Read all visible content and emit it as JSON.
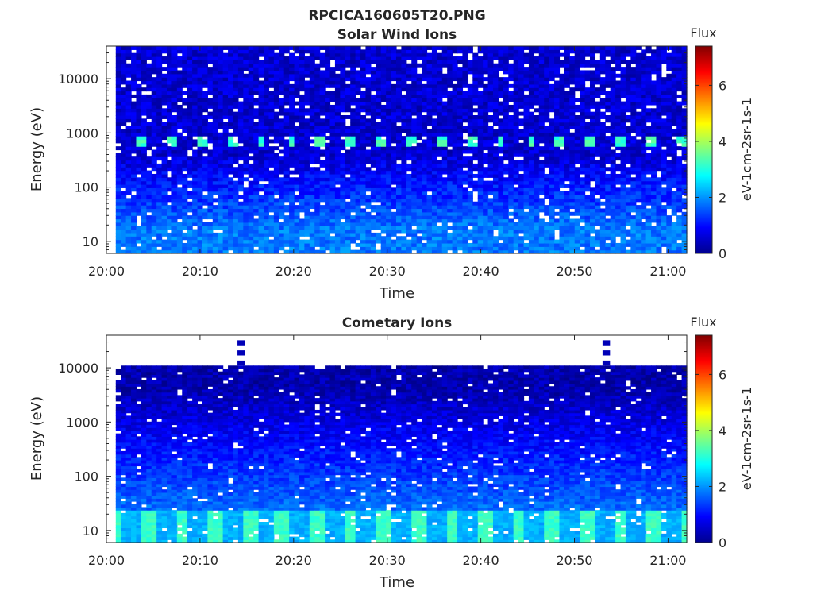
{
  "figure_title": "RPCICA160605T20.PNG",
  "chart_data": [
    {
      "type": "heatmap",
      "title": "Solar Wind Ions",
      "xlabel": "Time",
      "ylabel": "Energy (eV)",
      "x_ticks": [
        "20:00",
        "20:10",
        "20:20",
        "20:30",
        "20:40",
        "20:50",
        "21:00"
      ],
      "xlim": [
        "20:00",
        "21:02"
      ],
      "data_start": "20:01",
      "data_end": "21:02",
      "y_scale": "log",
      "y_ticks": [
        10,
        100,
        1000,
        10000
      ],
      "ylim": [
        6,
        40000
      ],
      "colorbar": {
        "title": "Flux",
        "label": "eV-1cm-2sr-1s-1",
        "ticks": [
          0,
          2,
          4,
          6
        ],
        "range": [
          0,
          7.4
        ]
      },
      "features": [
        {
          "description": "Solar wind proton beam",
          "energy_eV": 700,
          "peak_flux": 3.5,
          "pulse_period_min": 3.2,
          "num_pulses": 18
        }
      ],
      "background": {
        "high_energy_flux": 0.6,
        "low_energy_flux": 1.8,
        "transition_eV": 100
      }
    },
    {
      "type": "heatmap",
      "title": "Cometary Ions",
      "xlabel": "Time",
      "ylabel": "Energy (eV)",
      "x_ticks": [
        "20:00",
        "20:10",
        "20:20",
        "20:30",
        "20:40",
        "20:50",
        "21:00"
      ],
      "xlim": [
        "20:00",
        "21:02"
      ],
      "data_start": "20:01",
      "data_end": "21:02",
      "y_scale": "log",
      "y_ticks": [
        10,
        100,
        1000,
        10000
      ],
      "ylim": [
        6,
        40000
      ],
      "upper_energy_cutoff": 11000,
      "colorbar": {
        "title": "Flux",
        "label": "eV-1cm-2sr-1s-1",
        "ticks": [
          0,
          2,
          4,
          6
        ],
        "range": [
          0,
          7.4
        ]
      },
      "features": [
        {
          "description": "Low energy cometary ions",
          "energy_range_eV": [
            6,
            25
          ],
          "peak_flux": 3.2
        },
        {
          "description": "High energy spike",
          "time": "20:14",
          "energy_range_eV": [
            11000,
            40000
          ]
        },
        {
          "description": "High energy spike",
          "time": "20:53",
          "energy_range_eV": [
            11000,
            40000
          ]
        }
      ]
    }
  ]
}
